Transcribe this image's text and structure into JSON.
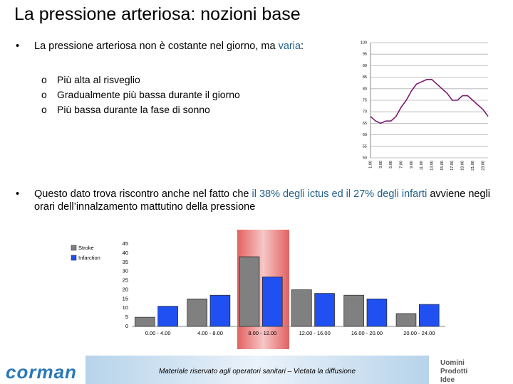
{
  "header": {
    "title": "La pressione arteriosa: nozioni base"
  },
  "bullets": [
    {
      "parts": [
        "La pressione arteriosa non è costante nel giorno, ma ",
        "varia",
        ":"
      ],
      "sub": [
        "Più alta al risveglio",
        "Gradualmente più bassa durante il giorno",
        "Più bassa durante la fase di sonno"
      ]
    },
    {
      "parts": [
        "Questo dato trova riscontro anche nel fatto che ",
        "il 38% degli ictus ed il 27% degli infarti",
        " avviene negli orari dell’innalzamento mattutino della pressione"
      ]
    }
  ],
  "chart_data": [
    {
      "type": "line",
      "categories": [
        "1.00",
        null,
        "3.00",
        null,
        "5.00",
        null,
        "7.00",
        null,
        "9.00",
        null,
        "11.00",
        null,
        "13.00",
        null,
        "15.00",
        null,
        "17.00",
        null,
        "19.00",
        null,
        "21.00",
        null,
        "23.00",
        null
      ],
      "values": [
        68,
        66,
        65,
        66,
        66,
        68,
        72,
        75,
        79,
        82,
        83,
        84,
        84,
        82,
        80,
        78,
        75,
        75,
        77,
        77,
        75,
        73,
        71,
        68
      ],
      "color": "#7a1a6e",
      "ylim": [
        50,
        100
      ],
      "yticks": [
        50,
        55,
        60,
        65,
        70,
        75,
        80,
        85,
        90,
        95,
        100
      ],
      "grid": true
    },
    {
      "type": "bar",
      "categories": [
        "0.00 - 4.00",
        "4.00 - 8.00",
        "8.00 - 12.00",
        "12.00 - 16.00",
        "16.00 - 20.00",
        "20.00 - 24.00"
      ],
      "series": [
        {
          "name": "Stroke",
          "color": "#808080",
          "values": [
            5,
            15,
            38,
            20,
            17,
            7
          ]
        },
        {
          "name": "Infarction",
          "color": "#2150f2",
          "values": [
            11,
            17,
            27,
            18,
            15,
            12
          ]
        }
      ],
      "ylim": [
        0,
        45
      ],
      "yticks": [
        0,
        5,
        10,
        15,
        20,
        25,
        30,
        35,
        40,
        45
      ],
      "grid": false,
      "legend": "left"
    }
  ],
  "footer": {
    "logo": "corman",
    "note": "Materiale riservato agli operatori sanitari – Vietata la diffusione",
    "brand": [
      "Uomini",
      "Prodotti",
      "Idee"
    ]
  }
}
